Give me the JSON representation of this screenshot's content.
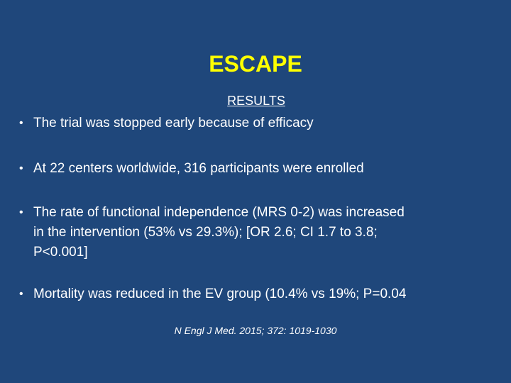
{
  "slide": {
    "title": "ESCAPE",
    "subheading": "RESULTS",
    "bullet_marker": "•",
    "bullets": [
      "The trial was stopped early because of efficacy",
      "At 22 centers worldwide, 316 participants were enrolled",
      "The rate of functional independence (MRS 0-2) was increased\nin the intervention (53% vs 29.3%); [OR 2.6; CI 1.7 to 3.8;\nP<0.001]",
      "Mortality was reduced in the EV group (10.4% vs 19%; P=0.04"
    ],
    "citation": "N Engl J Med. 2015; 372: 1019-1030"
  },
  "colors": {
    "background": "#1f477b",
    "title": "#ffff00",
    "text": "#ffffff"
  }
}
